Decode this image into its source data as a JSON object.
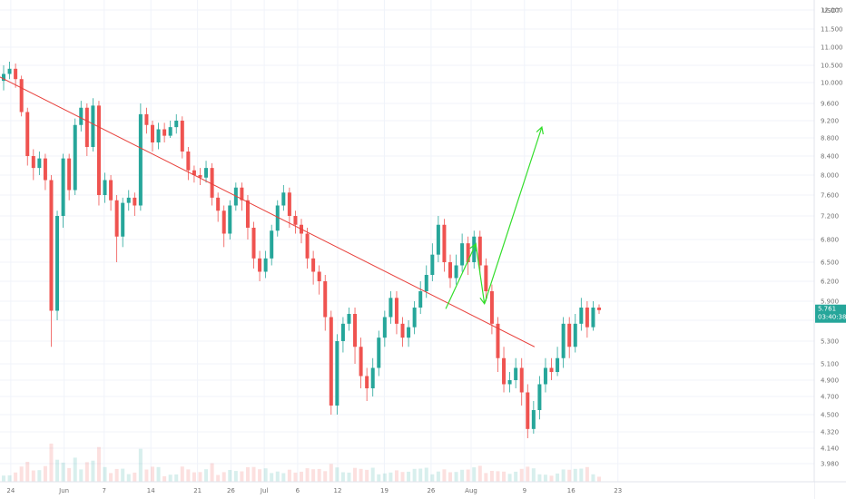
{
  "chart_data": {
    "type": "candlestick",
    "currency_label": "USDT",
    "y_ticks": [
      {
        "value": 12.0,
        "label": "12.000"
      },
      {
        "value": 11.5,
        "label": "11.500"
      },
      {
        "value": 11.0,
        "label": "11.000"
      },
      {
        "value": 10.5,
        "label": "10.500"
      },
      {
        "value": 10.0,
        "label": "10.000"
      },
      {
        "value": 9.6,
        "label": "9.600"
      },
      {
        "value": 9.2,
        "label": "9.200"
      },
      {
        "value": 8.8,
        "label": "8.800"
      },
      {
        "value": 8.4,
        "label": "8.400"
      },
      {
        "value": 8.0,
        "label": "8.000"
      },
      {
        "value": 7.6,
        "label": "7.600"
      },
      {
        "value": 7.2,
        "label": "7.200"
      },
      {
        "value": 6.8,
        "label": "6.800"
      },
      {
        "value": 6.5,
        "label": "6.500"
      },
      {
        "value": 6.2,
        "label": "6.200"
      },
      {
        "value": 5.9,
        "label": "5.900"
      },
      {
        "value": 5.6,
        "label": "5.600"
      },
      {
        "value": 5.3,
        "label": "5.300"
      },
      {
        "value": 5.1,
        "label": "5.100"
      },
      {
        "value": 4.9,
        "label": "4.900"
      },
      {
        "value": 4.7,
        "label": "4.700"
      },
      {
        "value": 4.5,
        "label": "4.500"
      },
      {
        "value": 4.32,
        "label": "4.320"
      },
      {
        "value": 4.14,
        "label": "4.140"
      },
      {
        "value": 3.98,
        "label": "3.980"
      }
    ],
    "x_ticks": [
      {
        "day": 1,
        "label": "24"
      },
      {
        "day": 9,
        "label": "Jun"
      },
      {
        "day": 15,
        "label": "7"
      },
      {
        "day": 22,
        "label": "14"
      },
      {
        "day": 29,
        "label": "21"
      },
      {
        "day": 34,
        "label": "26"
      },
      {
        "day": 39,
        "label": "Jul"
      },
      {
        "day": 44,
        "label": "6"
      },
      {
        "day": 50,
        "label": "12"
      },
      {
        "day": 57,
        "label": "19"
      },
      {
        "day": 64,
        "label": "26"
      },
      {
        "day": 70,
        "label": "Aug"
      },
      {
        "day": 78,
        "label": "9"
      },
      {
        "day": 85,
        "label": "16"
      },
      {
        "day": 92,
        "label": "23"
      }
    ],
    "last_price": {
      "value": 5.761,
      "label": "5.761",
      "countdown": "03:40:38"
    },
    "trendline": {
      "color": "#e8403b",
      "start": {
        "day": -3.9,
        "price": 10.48
      },
      "end": {
        "day": 79.5,
        "price": 5.25
      }
    },
    "projection": {
      "color": "#33dd2b",
      "points": [
        {
          "day": 66.2,
          "price": 5.78
        },
        {
          "day": 70.7,
          "price": 6.74
        },
        {
          "day": 72.0,
          "price": 5.86
        },
        {
          "day": 80.6,
          "price": 9.05
        }
      ]
    },
    "candles": [
      [
        10.05,
        10.25,
        10.5,
        9.85
      ],
      [
        10.25,
        10.4,
        10.6,
        10.1
      ],
      [
        10.4,
        10.1,
        10.55,
        9.9
      ],
      [
        10.1,
        9.4,
        10.2,
        9.3
      ],
      [
        9.4,
        8.4,
        9.5,
        8.2
      ],
      [
        8.4,
        8.15,
        8.55,
        7.9
      ],
      [
        8.15,
        8.35,
        8.5,
        8.0
      ],
      [
        8.35,
        7.9,
        8.45,
        7.7
      ],
      [
        7.9,
        5.75,
        8.0,
        5.25
      ],
      [
        5.75,
        7.2,
        7.3,
        5.6
      ],
      [
        7.2,
        8.35,
        8.45,
        7.0
      ],
      [
        8.35,
        7.7,
        8.45,
        7.5
      ],
      [
        7.7,
        9.1,
        9.25,
        7.6
      ],
      [
        9.1,
        9.5,
        9.65,
        8.95
      ],
      [
        9.5,
        8.6,
        9.6,
        8.4
      ],
      [
        8.6,
        9.55,
        9.7,
        8.5
      ],
      [
        9.55,
        7.6,
        9.65,
        7.4
      ],
      [
        7.6,
        7.9,
        8.05,
        7.45
      ],
      [
        7.9,
        7.5,
        8.0,
        7.3
      ],
      [
        7.5,
        6.85,
        7.6,
        6.5
      ],
      [
        6.85,
        7.45,
        7.55,
        6.7
      ],
      [
        7.45,
        7.55,
        7.7,
        7.3
      ],
      [
        7.55,
        7.4,
        7.65,
        7.2
      ],
      [
        7.4,
        9.35,
        9.6,
        7.3
      ],
      [
        9.35,
        9.1,
        9.5,
        8.9
      ],
      [
        9.1,
        8.7,
        9.2,
        8.5
      ],
      [
        8.7,
        9.0,
        9.15,
        8.55
      ],
      [
        9.0,
        8.85,
        9.15,
        8.7
      ],
      [
        8.85,
        9.05,
        9.2,
        8.8
      ],
      [
        9.05,
        9.2,
        9.35,
        8.9
      ],
      [
        9.2,
        8.5,
        9.3,
        8.35
      ],
      [
        8.5,
        8.1,
        8.6,
        7.9
      ],
      [
        8.1,
        8.0,
        8.2,
        7.85
      ],
      [
        8.0,
        7.95,
        8.15,
        7.8
      ],
      [
        7.95,
        8.15,
        8.3,
        7.85
      ],
      [
        8.15,
        7.55,
        8.25,
        7.4
      ],
      [
        7.55,
        7.3,
        7.65,
        7.1
      ],
      [
        7.3,
        6.9,
        7.4,
        6.7
      ],
      [
        6.9,
        7.4,
        7.5,
        6.8
      ],
      [
        7.4,
        7.75,
        7.85,
        7.3
      ],
      [
        7.75,
        7.5,
        7.85,
        7.3
      ],
      [
        7.5,
        7.0,
        7.6,
        6.8
      ],
      [
        7.0,
        6.55,
        7.1,
        6.4
      ],
      [
        6.55,
        6.35,
        6.65,
        6.2
      ],
      [
        6.35,
        6.55,
        6.65,
        6.25
      ],
      [
        6.55,
        6.95,
        7.05,
        6.45
      ],
      [
        6.95,
        7.4,
        7.5,
        6.85
      ],
      [
        7.4,
        7.65,
        7.8,
        7.3
      ],
      [
        7.65,
        7.2,
        7.75,
        7.0
      ],
      [
        7.2,
        7.05,
        7.3,
        6.9
      ],
      [
        7.05,
        6.9,
        7.15,
        6.75
      ],
      [
        6.9,
        6.55,
        7.0,
        6.4
      ],
      [
        6.55,
        6.35,
        6.65,
        6.15
      ],
      [
        6.35,
        6.2,
        6.45,
        6.0
      ],
      [
        6.2,
        5.65,
        6.3,
        5.45
      ],
      [
        5.65,
        4.6,
        5.75,
        4.5
      ],
      [
        4.6,
        5.3,
        5.4,
        4.5
      ],
      [
        5.3,
        5.55,
        5.65,
        5.2
      ],
      [
        5.55,
        5.7,
        5.8,
        5.45
      ],
      [
        5.7,
        5.25,
        5.8,
        5.1
      ],
      [
        5.25,
        4.95,
        5.35,
        4.8
      ],
      [
        4.95,
        4.8,
        5.05,
        4.65
      ],
      [
        4.8,
        5.05,
        5.15,
        4.7
      ],
      [
        5.05,
        5.35,
        5.45,
        4.95
      ],
      [
        5.35,
        5.65,
        5.75,
        5.25
      ],
      [
        5.65,
        5.95,
        6.05,
        5.55
      ],
      [
        5.95,
        5.55,
        6.05,
        5.4
      ],
      [
        5.55,
        5.35,
        5.65,
        5.25
      ],
      [
        5.35,
        5.5,
        5.6,
        5.25
      ],
      [
        5.5,
        5.8,
        5.9,
        5.4
      ],
      [
        5.8,
        6.05,
        6.2,
        5.7
      ],
      [
        6.05,
        6.3,
        6.45,
        5.95
      ],
      [
        6.3,
        6.6,
        6.75,
        6.2
      ],
      [
        6.6,
        7.05,
        7.2,
        6.5
      ],
      [
        7.05,
        6.5,
        7.15,
        6.35
      ],
      [
        6.5,
        6.25,
        6.6,
        6.1
      ],
      [
        6.25,
        6.45,
        6.6,
        6.15
      ],
      [
        6.45,
        6.75,
        6.9,
        6.35
      ],
      [
        6.75,
        6.5,
        6.85,
        6.3
      ],
      [
        6.5,
        6.85,
        6.95,
        6.4
      ],
      [
        6.85,
        6.45,
        6.95,
        6.3
      ],
      [
        6.45,
        6.05,
        6.55,
        5.9
      ],
      [
        6.05,
        5.55,
        6.15,
        5.4
      ],
      [
        5.55,
        5.15,
        5.65,
        5.0
      ],
      [
        5.15,
        4.85,
        5.25,
        4.75
      ],
      [
        4.85,
        4.9,
        5.0,
        4.75
      ],
      [
        4.9,
        5.05,
        5.15,
        4.8
      ],
      [
        5.05,
        4.75,
        5.15,
        4.6
      ],
      [
        4.75,
        4.35,
        4.85,
        4.25
      ],
      [
        4.35,
        4.55,
        4.65,
        4.3
      ],
      [
        4.55,
        4.85,
        4.95,
        4.45
      ],
      [
        4.85,
        5.05,
        5.15,
        4.75
      ],
      [
        5.05,
        5.0,
        5.15,
        4.9
      ],
      [
        5.0,
        5.15,
        5.25,
        4.95
      ],
      [
        5.15,
        5.55,
        5.65,
        5.05
      ],
      [
        5.55,
        5.25,
        5.65,
        5.15
      ],
      [
        5.25,
        5.55,
        5.7,
        5.2
      ],
      [
        5.55,
        5.8,
        5.95,
        5.45
      ],
      [
        5.8,
        5.5,
        5.9,
        5.35
      ],
      [
        5.5,
        5.8,
        5.9,
        5.45
      ],
      [
        5.8,
        5.76,
        5.85,
        5.7
      ]
    ]
  }
}
